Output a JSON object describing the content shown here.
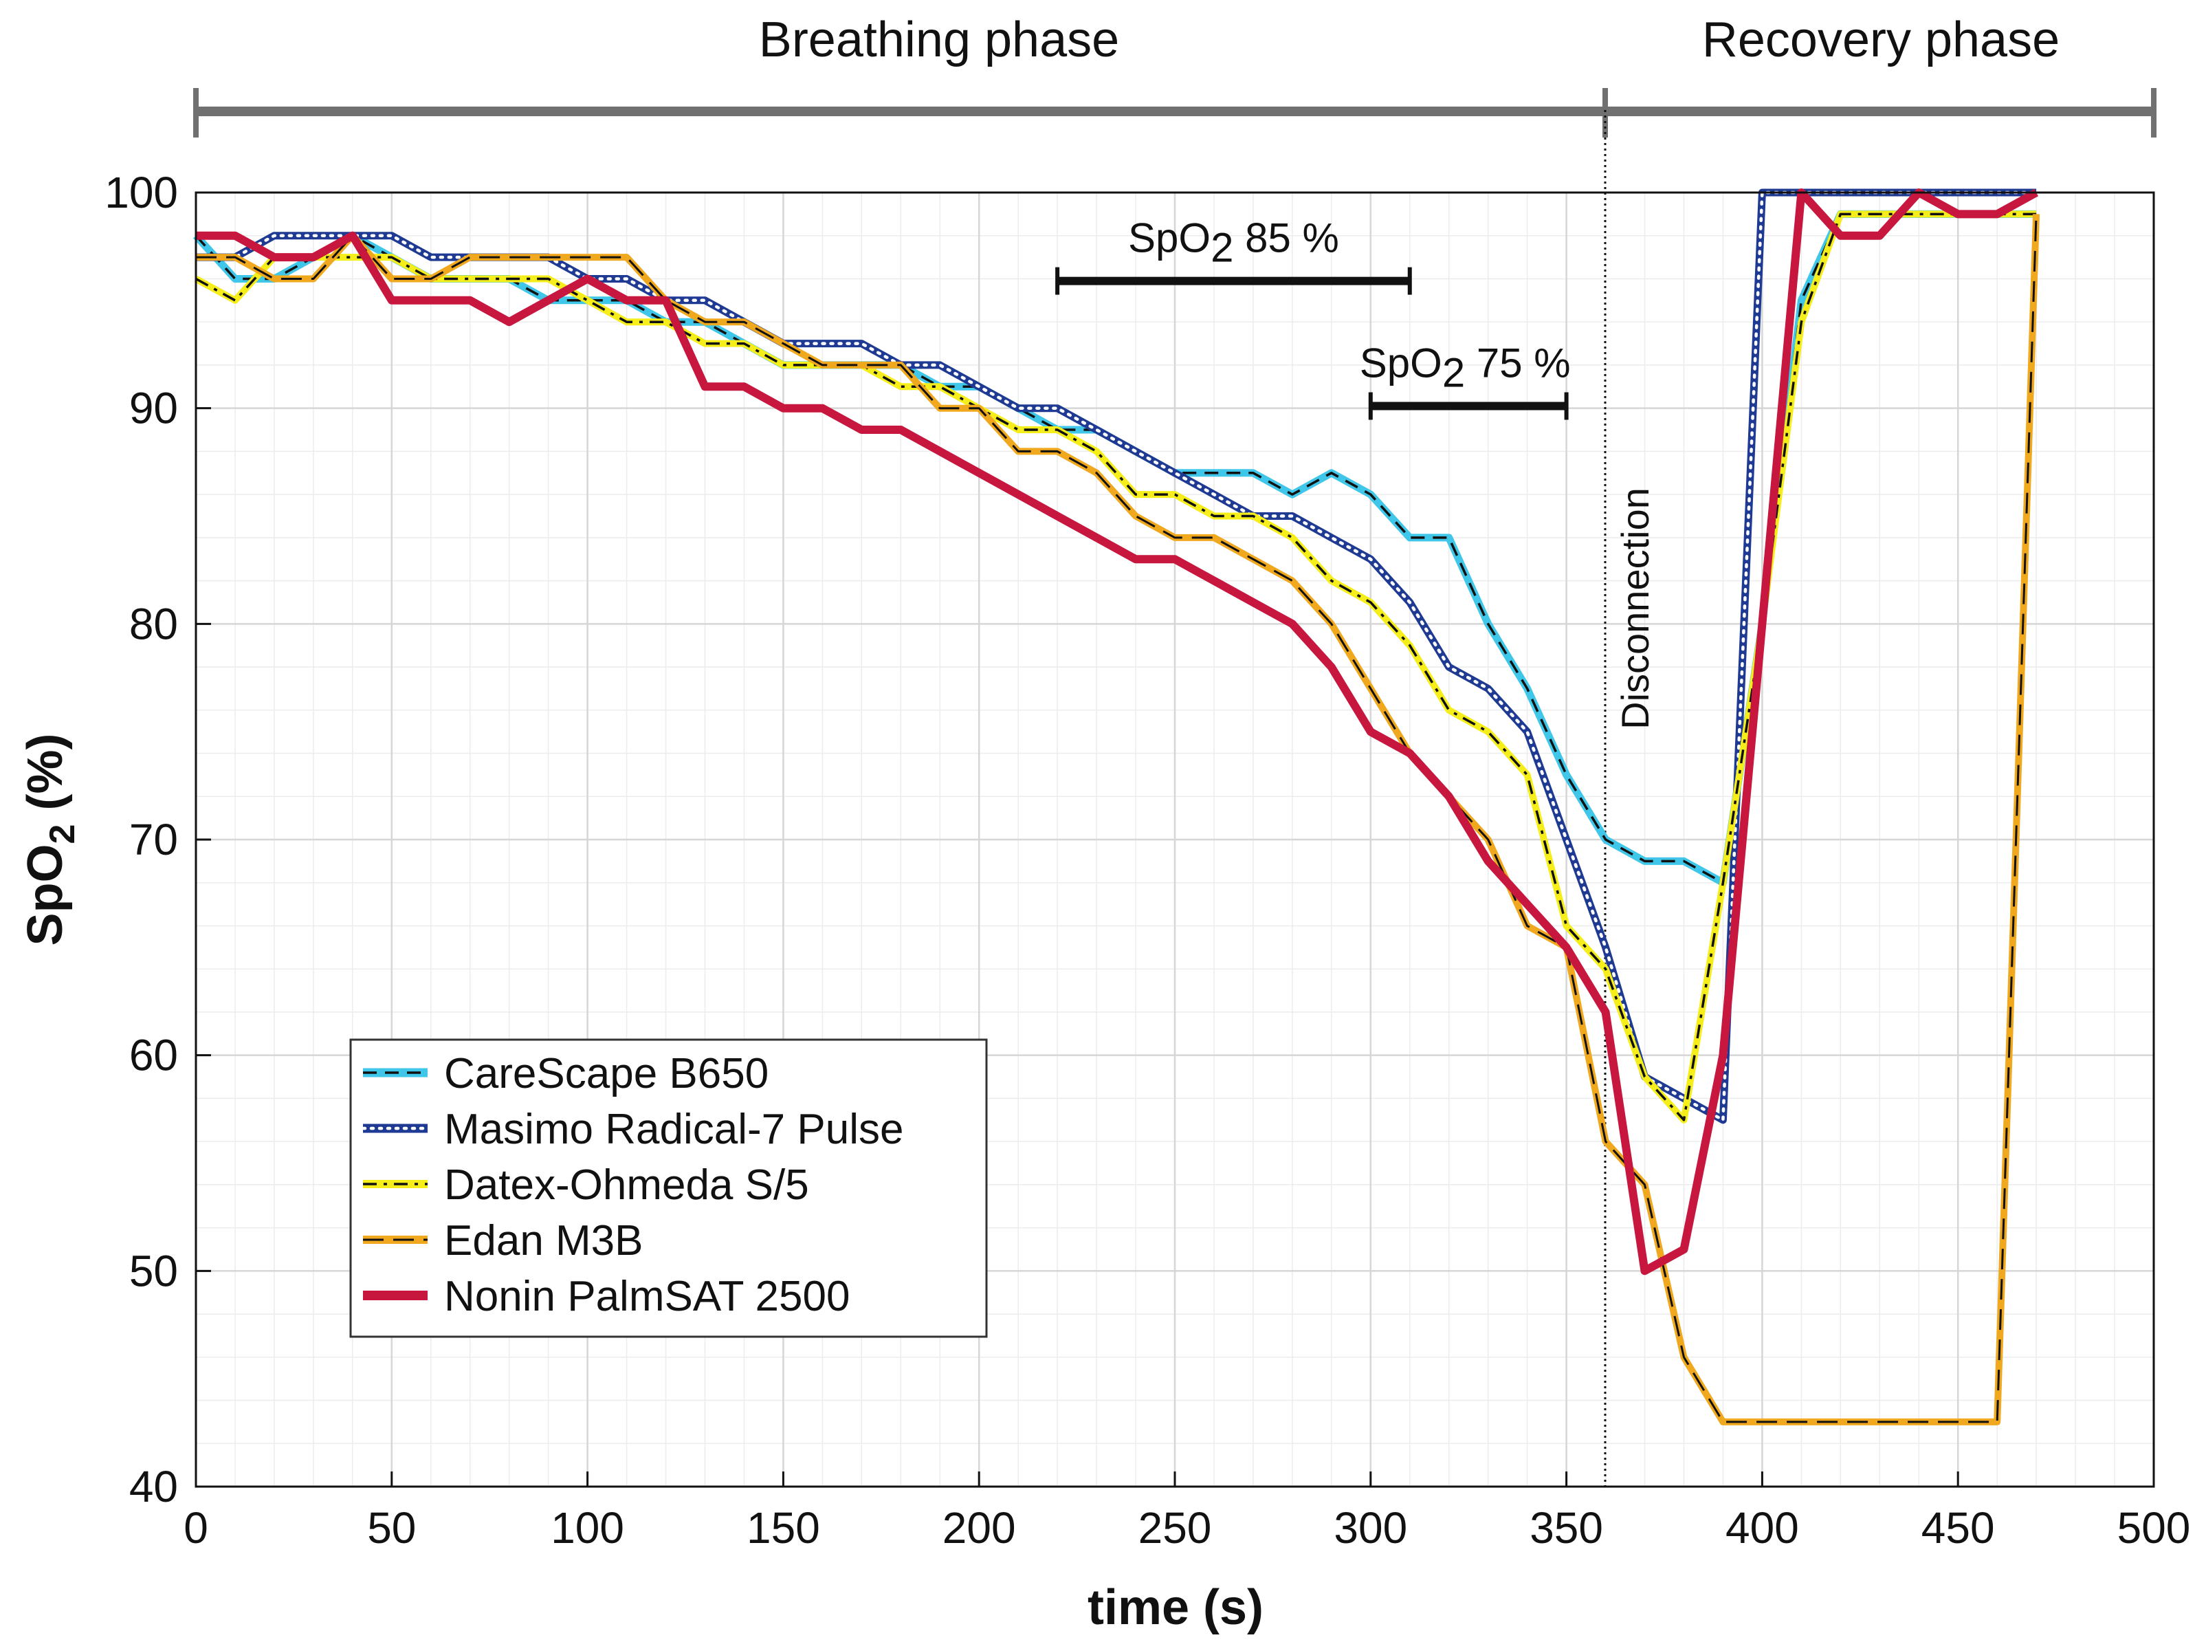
{
  "chart_data": {
    "type": "line",
    "xlabel": "time (s)",
    "ylabel": "SpO2 (%)",
    "ylabel_parts": {
      "main": "SpO",
      "sub": "2",
      "tail": " (%)"
    },
    "xlim": [
      0,
      500
    ],
    "ylim": [
      40,
      100
    ],
    "x_ticks": [
      0,
      50,
      100,
      150,
      200,
      250,
      300,
      350,
      400,
      450,
      500
    ],
    "y_ticks": [
      40,
      50,
      60,
      70,
      80,
      90,
      100
    ],
    "grid": true,
    "legend_position": "bottom-left",
    "phases": [
      {
        "label": "Breathing phase",
        "x_start": 0,
        "x_end": 360
      },
      {
        "label": "Recovery phase",
        "x_start": 360,
        "x_end": 500
      }
    ],
    "disconnection": {
      "label": "Disconnection",
      "x": 360
    },
    "ranges": [
      {
        "label": "SpO2 85 %",
        "main": "SpO",
        "sub": "2",
        "tail": " 85 %",
        "x_start": 220,
        "x_end": 310,
        "y": 95.9
      },
      {
        "label": "SpO2 75 %",
        "main": "SpO",
        "sub": "2",
        "tail": " 75 %",
        "x_start": 300,
        "x_end": 350,
        "y": 90.1
      }
    ],
    "series": [
      {
        "name": "CareScape B650",
        "color": "#3fc6e8",
        "dash_color": "#111111",
        "style": "dash",
        "points": [
          [
            0,
            98
          ],
          [
            10,
            96
          ],
          [
            20,
            96
          ],
          [
            30,
            97
          ],
          [
            40,
            98
          ],
          [
            50,
            97
          ],
          [
            60,
            96
          ],
          [
            70,
            96
          ],
          [
            80,
            96
          ],
          [
            90,
            95
          ],
          [
            100,
            95
          ],
          [
            110,
            95
          ],
          [
            120,
            94
          ],
          [
            130,
            94
          ],
          [
            140,
            93
          ],
          [
            150,
            92
          ],
          [
            160,
            92
          ],
          [
            170,
            92
          ],
          [
            180,
            92
          ],
          [
            190,
            91
          ],
          [
            200,
            91
          ],
          [
            210,
            90
          ],
          [
            220,
            89
          ],
          [
            230,
            89
          ],
          [
            240,
            88
          ],
          [
            250,
            87
          ],
          [
            260,
            87
          ],
          [
            270,
            87
          ],
          [
            280,
            86
          ],
          [
            290,
            87
          ],
          [
            300,
            86
          ],
          [
            310,
            84
          ],
          [
            320,
            84
          ],
          [
            330,
            80
          ],
          [
            340,
            77
          ],
          [
            350,
            73
          ],
          [
            360,
            70
          ],
          [
            370,
            69
          ],
          [
            380,
            69
          ],
          [
            390,
            68
          ],
          [
            400,
            80
          ],
          [
            410,
            95
          ],
          [
            420,
            99
          ],
          [
            430,
            99
          ],
          [
            440,
            99
          ],
          [
            450,
            99
          ],
          [
            460,
            99
          ],
          [
            470,
            99
          ]
        ]
      },
      {
        "name": "Masimo Radical-7 Pulse",
        "color": "#1f3a93",
        "dash_color": "#ffffff",
        "style": "dot",
        "points": [
          [
            0,
            97
          ],
          [
            10,
            97
          ],
          [
            20,
            98
          ],
          [
            30,
            98
          ],
          [
            40,
            98
          ],
          [
            50,
            98
          ],
          [
            60,
            97
          ],
          [
            70,
            97
          ],
          [
            80,
            97
          ],
          [
            90,
            97
          ],
          [
            100,
            96
          ],
          [
            110,
            96
          ],
          [
            120,
            95
          ],
          [
            130,
            95
          ],
          [
            140,
            94
          ],
          [
            150,
            93
          ],
          [
            160,
            93
          ],
          [
            170,
            93
          ],
          [
            180,
            92
          ],
          [
            190,
            92
          ],
          [
            200,
            91
          ],
          [
            210,
            90
          ],
          [
            220,
            90
          ],
          [
            230,
            89
          ],
          [
            240,
            88
          ],
          [
            250,
            87
          ],
          [
            260,
            86
          ],
          [
            270,
            85
          ],
          [
            280,
            85
          ],
          [
            290,
            84
          ],
          [
            300,
            83
          ],
          [
            310,
            81
          ],
          [
            320,
            78
          ],
          [
            330,
            77
          ],
          [
            340,
            75
          ],
          [
            350,
            70
          ],
          [
            360,
            65
          ],
          [
            370,
            59
          ],
          [
            380,
            58
          ],
          [
            390,
            57
          ],
          [
            400,
            100
          ],
          [
            410,
            100
          ],
          [
            420,
            100
          ],
          [
            430,
            100
          ],
          [
            440,
            100
          ],
          [
            450,
            100
          ],
          [
            460,
            100
          ],
          [
            470,
            100
          ]
        ]
      },
      {
        "name": "Datex-Ohmeda S/5",
        "color": "#f5ee1a",
        "dash_color": "#111111",
        "style": "dashdot",
        "points": [
          [
            0,
            96
          ],
          [
            10,
            95
          ],
          [
            20,
            97
          ],
          [
            30,
            97
          ],
          [
            40,
            97
          ],
          [
            50,
            97
          ],
          [
            60,
            96
          ],
          [
            70,
            96
          ],
          [
            80,
            96
          ],
          [
            90,
            96
          ],
          [
            100,
            95
          ],
          [
            110,
            94
          ],
          [
            120,
            94
          ],
          [
            130,
            93
          ],
          [
            140,
            93
          ],
          [
            150,
            92
          ],
          [
            160,
            92
          ],
          [
            170,
            92
          ],
          [
            180,
            91
          ],
          [
            190,
            91
          ],
          [
            200,
            90
          ],
          [
            210,
            89
          ],
          [
            220,
            89
          ],
          [
            230,
            88
          ],
          [
            240,
            86
          ],
          [
            250,
            86
          ],
          [
            260,
            85
          ],
          [
            270,
            85
          ],
          [
            280,
            84
          ],
          [
            290,
            82
          ],
          [
            300,
            81
          ],
          [
            310,
            79
          ],
          [
            320,
            76
          ],
          [
            330,
            75
          ],
          [
            340,
            73
          ],
          [
            350,
            66
          ],
          [
            360,
            64
          ],
          [
            370,
            59
          ],
          [
            380,
            57
          ],
          [
            390,
            68
          ],
          [
            400,
            80
          ],
          [
            410,
            94
          ],
          [
            420,
            99
          ],
          [
            430,
            99
          ],
          [
            440,
            99
          ],
          [
            450,
            99
          ],
          [
            460,
            99
          ],
          [
            470,
            99
          ]
        ]
      },
      {
        "name": "Edan M3B",
        "color": "#f0a81e",
        "dash_color": "#111111",
        "style": "longdash",
        "points": [
          [
            0,
            97
          ],
          [
            10,
            97
          ],
          [
            20,
            96
          ],
          [
            30,
            96
          ],
          [
            40,
            98
          ],
          [
            50,
            96
          ],
          [
            60,
            96
          ],
          [
            70,
            97
          ],
          [
            80,
            97
          ],
          [
            90,
            97
          ],
          [
            100,
            97
          ],
          [
            110,
            97
          ],
          [
            120,
            95
          ],
          [
            130,
            94
          ],
          [
            140,
            94
          ],
          [
            150,
            93
          ],
          [
            160,
            92
          ],
          [
            170,
            92
          ],
          [
            180,
            92
          ],
          [
            190,
            90
          ],
          [
            200,
            90
          ],
          [
            210,
            88
          ],
          [
            220,
            88
          ],
          [
            230,
            87
          ],
          [
            240,
            85
          ],
          [
            250,
            84
          ],
          [
            260,
            84
          ],
          [
            270,
            83
          ],
          [
            280,
            82
          ],
          [
            290,
            80
          ],
          [
            300,
            77
          ],
          [
            310,
            74
          ],
          [
            320,
            72
          ],
          [
            330,
            70
          ],
          [
            340,
            66
          ],
          [
            350,
            65
          ],
          [
            360,
            56
          ],
          [
            370,
            54
          ],
          [
            380,
            46
          ],
          [
            390,
            43
          ],
          [
            400,
            43
          ],
          [
            410,
            43
          ],
          [
            420,
            43
          ],
          [
            430,
            43
          ],
          [
            440,
            43
          ],
          [
            450,
            43
          ],
          [
            460,
            43
          ],
          [
            470,
            99
          ]
        ]
      },
      {
        "name": "Nonin PalmSAT 2500",
        "color": "#c8173f",
        "dash_color": "",
        "style": "solid",
        "points": [
          [
            0,
            98
          ],
          [
            10,
            98
          ],
          [
            20,
            97
          ],
          [
            30,
            97
          ],
          [
            40,
            98
          ],
          [
            50,
            95
          ],
          [
            60,
            95
          ],
          [
            70,
            95
          ],
          [
            80,
            94
          ],
          [
            90,
            95
          ],
          [
            100,
            96
          ],
          [
            110,
            95
          ],
          [
            120,
            95
          ],
          [
            130,
            91
          ],
          [
            140,
            91
          ],
          [
            150,
            90
          ],
          [
            160,
            90
          ],
          [
            170,
            89
          ],
          [
            180,
            89
          ],
          [
            190,
            88
          ],
          [
            200,
            87
          ],
          [
            210,
            86
          ],
          [
            220,
            85
          ],
          [
            230,
            84
          ],
          [
            240,
            83
          ],
          [
            250,
            83
          ],
          [
            260,
            82
          ],
          [
            270,
            81
          ],
          [
            280,
            80
          ],
          [
            290,
            78
          ],
          [
            300,
            75
          ],
          [
            310,
            74
          ],
          [
            320,
            72
          ],
          [
            330,
            69
          ],
          [
            340,
            67
          ],
          [
            350,
            65
          ],
          [
            360,
            62
          ],
          [
            370,
            50
          ],
          [
            380,
            51
          ],
          [
            390,
            60
          ],
          [
            400,
            80
          ],
          [
            410,
            100
          ],
          [
            420,
            98
          ],
          [
            430,
            98
          ],
          [
            440,
            100
          ],
          [
            450,
            99
          ],
          [
            460,
            99
          ],
          [
            470,
            100
          ]
        ]
      }
    ]
  }
}
